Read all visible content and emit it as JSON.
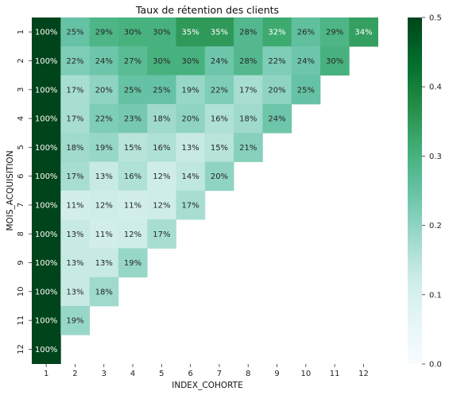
{
  "chart_data": {
    "type": "heatmap",
    "title": "Taux de rétention des clients",
    "xlabel": "INDEX_COHORTE",
    "ylabel": "MOIS_ACQUISITION",
    "x_categories": [
      "1",
      "2",
      "3",
      "4",
      "5",
      "6",
      "7",
      "8",
      "9",
      "10",
      "11",
      "12"
    ],
    "y_categories": [
      "1",
      "2",
      "3",
      "4",
      "5",
      "6",
      "7",
      "8",
      "9",
      "10",
      "11",
      "12"
    ],
    "values": [
      [
        1.0,
        0.25,
        0.29,
        0.3,
        0.3,
        0.35,
        0.35,
        0.28,
        0.32,
        0.26,
        0.29,
        0.34
      ],
      [
        1.0,
        0.22,
        0.24,
        0.27,
        0.3,
        0.3,
        0.24,
        0.28,
        0.22,
        0.24,
        0.3,
        null
      ],
      [
        1.0,
        0.17,
        0.2,
        0.25,
        0.25,
        0.19,
        0.22,
        0.17,
        0.2,
        0.25,
        null,
        null
      ],
      [
        1.0,
        0.17,
        0.22,
        0.23,
        0.18,
        0.2,
        0.16,
        0.18,
        0.24,
        null,
        null,
        null
      ],
      [
        1.0,
        0.18,
        0.19,
        0.15,
        0.16,
        0.13,
        0.15,
        0.21,
        null,
        null,
        null,
        null
      ],
      [
        1.0,
        0.17,
        0.13,
        0.16,
        0.12,
        0.14,
        0.2,
        null,
        null,
        null,
        null,
        null
      ],
      [
        1.0,
        0.11,
        0.12,
        0.11,
        0.12,
        0.17,
        null,
        null,
        null,
        null,
        null,
        null
      ],
      [
        1.0,
        0.13,
        0.11,
        0.12,
        0.17,
        null,
        null,
        null,
        null,
        null,
        null,
        null
      ],
      [
        1.0,
        0.13,
        0.13,
        0.19,
        null,
        null,
        null,
        null,
        null,
        null,
        null,
        null
      ],
      [
        1.0,
        0.13,
        0.18,
        null,
        null,
        null,
        null,
        null,
        null,
        null,
        null,
        null
      ],
      [
        1.0,
        0.19,
        null,
        null,
        null,
        null,
        null,
        null,
        null,
        null,
        null,
        null
      ],
      [
        1.0,
        null,
        null,
        null,
        null,
        null,
        null,
        null,
        null,
        null,
        null,
        null
      ]
    ],
    "value_format": "percent",
    "colormap": "BuGn",
    "vmin": 0.0,
    "vmax": 0.5,
    "colorbar_ticks": [
      "0.0",
      "0.1",
      "0.2",
      "0.3",
      "0.4",
      "0.5"
    ],
    "colorbar_tick_values": [
      0.0,
      0.1,
      0.2,
      0.3,
      0.4,
      0.5
    ]
  }
}
